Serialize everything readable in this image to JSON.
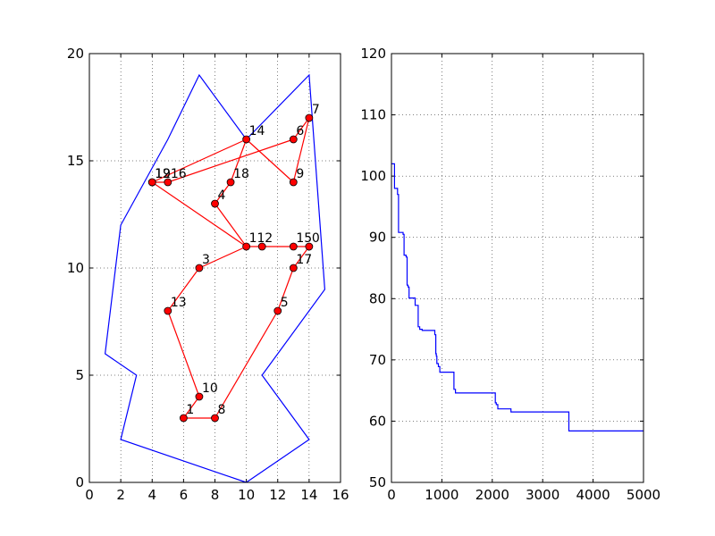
{
  "chart_data": [
    {
      "type": "scatter",
      "xlim": [
        0,
        16
      ],
      "ylim": [
        0,
        20
      ],
      "xticks": [
        "0",
        "2",
        "4",
        "6",
        "8",
        "10",
        "12",
        "14",
        "16"
      ],
      "yticks": [
        "0",
        "5",
        "10",
        "15",
        "20"
      ],
      "grid": true,
      "boundary_color": "#0000ff",
      "route_color": "#ff0000",
      "boundary": [
        [
          10,
          0
        ],
        [
          14,
          2
        ],
        [
          11,
          5
        ],
        [
          15,
          9
        ],
        [
          14,
          19
        ],
        [
          10,
          16
        ],
        [
          7,
          19
        ],
        [
          5,
          16
        ],
        [
          2,
          12
        ],
        [
          1,
          6
        ],
        [
          3,
          5
        ],
        [
          2,
          2
        ],
        [
          10,
          0
        ]
      ],
      "points": [
        {
          "label": "0",
          "x": 14,
          "y": 11
        },
        {
          "label": "1",
          "x": 6,
          "y": 3
        },
        {
          "label": "2",
          "x": 11,
          "y": 11
        },
        {
          "label": "3",
          "x": 7,
          "y": 10
        },
        {
          "label": "4",
          "x": 8,
          "y": 13
        },
        {
          "label": "5",
          "x": 12,
          "y": 8
        },
        {
          "label": "6",
          "x": 13,
          "y": 16
        },
        {
          "label": "7",
          "x": 14,
          "y": 17
        },
        {
          "label": "8",
          "x": 8,
          "y": 3
        },
        {
          "label": "9",
          "x": 13,
          "y": 14
        },
        {
          "label": "10",
          "x": 7,
          "y": 4
        },
        {
          "label": "11",
          "x": 10,
          "y": 11
        },
        {
          "label": "12",
          "x": 4,
          "y": 14
        },
        {
          "label": "13",
          "x": 5,
          "y": 8
        },
        {
          "label": "14",
          "x": 10,
          "y": 16
        },
        {
          "label": "15",
          "x": 13,
          "y": 11
        },
        {
          "label": "16",
          "x": 5,
          "y": 14
        },
        {
          "label": "17",
          "x": 13,
          "y": 10
        },
        {
          "label": "18",
          "x": 9,
          "y": 14
        },
        {
          "label": "19",
          "x": 4,
          "y": 14
        }
      ],
      "route": [
        [
          12,
          14
        ],
        [
          14,
          18
        ],
        [
          18,
          4
        ],
        [
          4,
          11
        ],
        [
          11,
          2
        ],
        [
          2,
          15
        ],
        [
          15,
          0
        ],
        [
          0,
          17
        ],
        [
          17,
          5
        ],
        [
          5,
          8
        ],
        [
          8,
          1
        ],
        [
          1,
          10
        ],
        [
          10,
          13
        ],
        [
          13,
          3
        ],
        [
          3,
          11
        ],
        [
          11,
          12
        ],
        [
          12,
          16
        ],
        [
          16,
          6
        ],
        [
          6,
          7
        ],
        [
          7,
          9
        ],
        [
          9,
          14
        ]
      ]
    },
    {
      "type": "line",
      "xlim": [
        0,
        5000
      ],
      "ylim": [
        50,
        120
      ],
      "xticks": [
        "0",
        "1000",
        "2000",
        "3000",
        "4000",
        "5000"
      ],
      "yticks": [
        "50",
        "60",
        "70",
        "80",
        "90",
        "100",
        "110",
        "120"
      ],
      "grid": true,
      "color": "#0000ff",
      "steps": [
        [
          0,
          102
        ],
        [
          60,
          98
        ],
        [
          120,
          97
        ],
        [
          140,
          90.8
        ],
        [
          230,
          90.5
        ],
        [
          250,
          87.1
        ],
        [
          290,
          86.8
        ],
        [
          310,
          82.2
        ],
        [
          330,
          81.9
        ],
        [
          350,
          80.1
        ],
        [
          470,
          78.9
        ],
        [
          530,
          75.4
        ],
        [
          560,
          75.0
        ],
        [
          610,
          74.8
        ],
        [
          860,
          74.1
        ],
        [
          880,
          71.0
        ],
        [
          890,
          70.6
        ],
        [
          900,
          69.4
        ],
        [
          930,
          68.9
        ],
        [
          960,
          68.0
        ],
        [
          1240,
          65.2
        ],
        [
          1270,
          64.6
        ],
        [
          2060,
          63.0
        ],
        [
          2080,
          62.7
        ],
        [
          2110,
          62.0
        ],
        [
          2370,
          61.5
        ],
        [
          3520,
          58.4
        ],
        [
          5000,
          58.4
        ]
      ]
    }
  ]
}
